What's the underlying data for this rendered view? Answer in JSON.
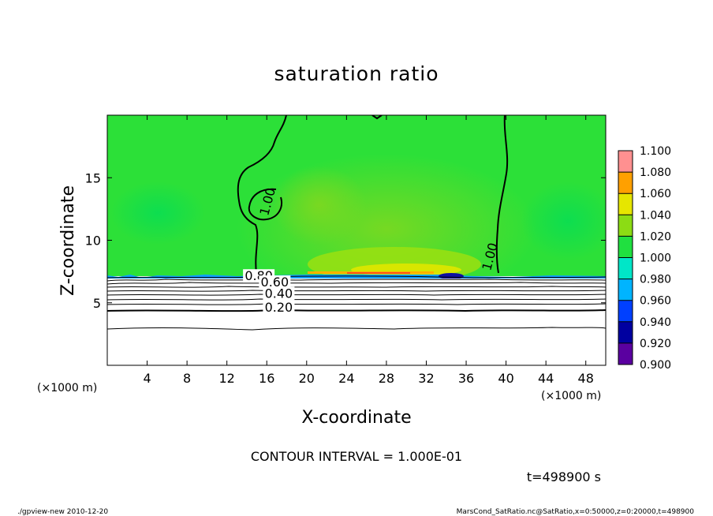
{
  "title": "saturation ratio",
  "contour_interval": "CONTOUR INTERVAL = 1.000E-01",
  "time_label": "t=498900 s",
  "footer_left": "./gpview-new  2010-12-20",
  "footer_right": "MarsCond_SatRatio.nc@SatRatio,x=0:50000,z=0:20000,t=498900",
  "chart_data": {
    "type": "heatmap",
    "title": "saturation ratio",
    "xlabel": "X-coordinate",
    "ylabel": "Z-coordinate",
    "x_unit": "(×1000 m)",
    "y_unit": "(×1000 m)",
    "xlim": [
      0,
      50
    ],
    "ylim": [
      0,
      20
    ],
    "x_ticks": [
      4,
      8,
      12,
      16,
      20,
      24,
      28,
      32,
      36,
      40,
      44,
      48
    ],
    "y_ticks": [
      5,
      10,
      15
    ],
    "colorbar": {
      "levels": [
        "0.900",
        "0.920",
        "0.940",
        "0.960",
        "0.980",
        "1.000",
        "1.020",
        "1.040",
        "1.060",
        "1.080",
        "1.100"
      ],
      "colors": [
        "#5a00a0",
        "#0000a0",
        "#0040ff",
        "#00b4ff",
        "#00e6c8",
        "#20e040",
        "#8cdc14",
        "#e6e600",
        "#ffa000",
        "#ff4020",
        "#ff9090"
      ]
    },
    "contour_labels": [
      {
        "text": "1.00",
        "x": 16.5,
        "z": 13.0
      },
      {
        "text": "1.00",
        "x": 38.8,
        "z": 8.6
      },
      {
        "text": "0.80",
        "x": 15.2,
        "z": 6.8
      },
      {
        "text": "0.60",
        "x": 16.8,
        "z": 6.3
      },
      {
        "text": "0.40",
        "x": 17.2,
        "z": 5.4
      },
      {
        "text": "0.20",
        "x": 17.2,
        "z": 4.3
      }
    ]
  }
}
